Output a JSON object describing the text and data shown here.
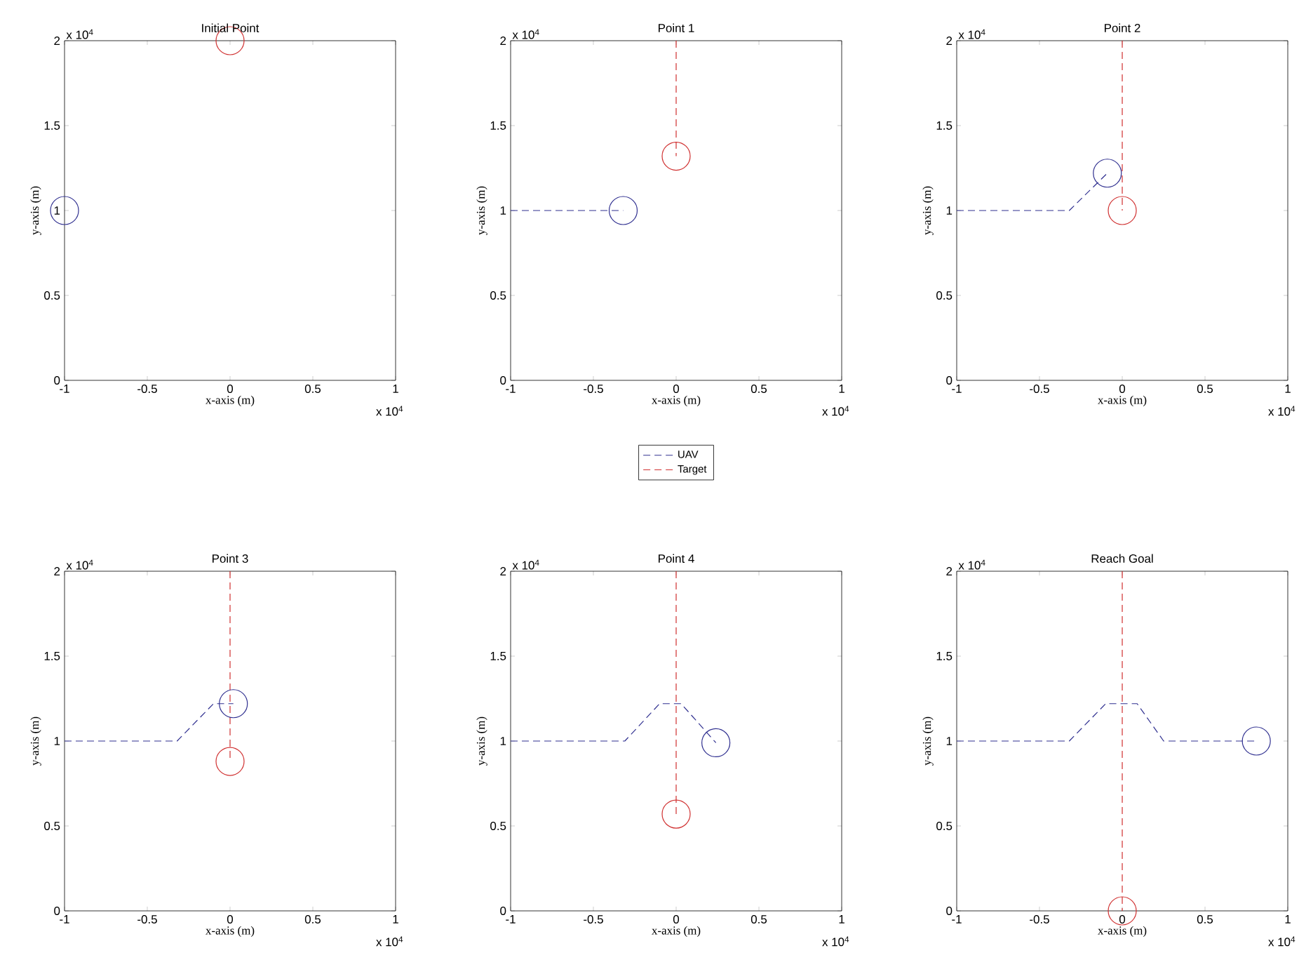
{
  "chart_data": [
    {
      "type": "line",
      "title": "Initial Point",
      "xlabel": "x-axis (m)",
      "ylabel": "y-axis (m)",
      "annotations": [
        "x 10$^{4}$",
        "x 10$^{4}$"
      ],
      "xlim": [
        -1,
        1
      ],
      "ylim": [
        0,
        2
      ],
      "xticks": [
        -1,
        -0.5,
        0,
        0.5,
        1
      ],
      "yticks": [
        0,
        0.5,
        1,
        1.5,
        2
      ],
      "series": [
        {
          "type": "scatter",
          "color": "#303090",
          "marker": "circle",
          "x": [
            -1
          ],
          "values": [
            1
          ]
        },
        {
          "type": "scatter",
          "color": "#d03030",
          "marker": "circle",
          "x": [
            0
          ],
          "values": [
            2
          ]
        }
      ]
    },
    {
      "type": "line",
      "title": "Point 1",
      "xlabel": "x-axis (m)",
      "ylabel": "y-axis (m)",
      "annotations": [
        "x 10$^{4}$",
        "x 10$^{4}$"
      ],
      "xlim": [
        -1,
        1
      ],
      "ylim": [
        0,
        2
      ],
      "legend": "bottom",
      "xticks": [
        -1,
        -0.5,
        0,
        0.5,
        1
      ],
      "yticks": [
        0,
        0.5,
        1,
        1.5,
        2
      ],
      "series": [
        {
          "name": "UAV",
          "color": "#303090",
          "line_style": "dashed",
          "x": [
            -1,
            -0.32
          ],
          "values": [
            1,
            1
          ]
        },
        {
          "name": "Target",
          "color": "#d03030",
          "line_style": "dashed",
          "x": [
            0,
            0
          ],
          "values": [
            2,
            1.32
          ]
        },
        {
          "type": "scatter",
          "color": "#303090",
          "marker": "circle",
          "x": [
            -0.32
          ],
          "values": [
            1
          ]
        },
        {
          "type": "scatter",
          "color": "#d03030",
          "marker": "circle",
          "x": [
            0
          ],
          "values": [
            1.32
          ]
        }
      ]
    },
    {
      "type": "line",
      "title": "Point 2",
      "xlabel": "x-axis (m)",
      "ylabel": "y-axis (m)",
      "annotations": [
        "x 10$^{4}$",
        "x 10$^{4}$"
      ],
      "xlim": [
        -1,
        1
      ],
      "ylim": [
        0,
        2
      ],
      "xticks": [
        -1,
        -0.5,
        0,
        0.5,
        1
      ],
      "yticks": [
        0,
        0.5,
        1,
        1.5,
        2
      ],
      "series": [
        {
          "color": "#303090",
          "line_style": "dashed",
          "x": [
            -1,
            -0.32,
            -0.09
          ],
          "values": [
            1,
            1,
            1.22
          ]
        },
        {
          "color": "#d03030",
          "line_style": "dashed",
          "x": [
            0,
            0
          ],
          "values": [
            2,
            1
          ]
        },
        {
          "type": "scatter",
          "color": "#303090",
          "marker": "circle",
          "x": [
            -0.09
          ],
          "values": [
            1.22
          ]
        },
        {
          "type": "scatter",
          "color": "#d03030",
          "marker": "circle",
          "x": [
            0
          ],
          "values": [
            1
          ]
        }
      ]
    },
    {
      "type": "line",
      "title": "Point 3",
      "xlabel": "x-axis (m)",
      "ylabel": "y-axis (m)",
      "annotations": [
        "x 10$^{4}$",
        "x 10$^{4}$"
      ],
      "xlim": [
        -1,
        1
      ],
      "ylim": [
        0,
        2
      ],
      "xticks": [
        -1,
        -0.5,
        0,
        0.5,
        1
      ],
      "yticks": [
        0,
        0.5,
        1,
        1.5,
        2
      ],
      "series": [
        {
          "color": "#303090",
          "line_style": "dashed",
          "x": [
            -1,
            -0.32,
            -0.1,
            0.02
          ],
          "values": [
            1,
            1,
            1.22,
            1.22
          ]
        },
        {
          "color": "#d03030",
          "line_style": "dashed",
          "x": [
            0,
            0
          ],
          "values": [
            2,
            0.88
          ]
        },
        {
          "type": "scatter",
          "color": "#303090",
          "marker": "circle",
          "x": [
            0.02
          ],
          "values": [
            1.22
          ]
        },
        {
          "type": "scatter",
          "color": "#d03030",
          "marker": "circle",
          "x": [
            0
          ],
          "values": [
            0.88
          ]
        }
      ]
    },
    {
      "type": "line",
      "title": "Point 4",
      "xlabel": "x-axis (m)",
      "ylabel": "y-axis (m)",
      "annotations": [
        "x 10$^{4}$",
        "x 10$^{4}$"
      ],
      "xlim": [
        -1,
        1
      ],
      "ylim": [
        0,
        2
      ],
      "xticks": [
        -1,
        -0.5,
        0,
        0.5,
        1
      ],
      "yticks": [
        0,
        0.5,
        1,
        1.5,
        2
      ],
      "series": [
        {
          "color": "#303090",
          "line_style": "dashed",
          "x": [
            -1,
            -0.31,
            -0.1,
            0.03,
            0.24
          ],
          "values": [
            1,
            1,
            1.22,
            1.22,
            0.99
          ]
        },
        {
          "color": "#d03030",
          "line_style": "dashed",
          "x": [
            0,
            0
          ],
          "values": [
            2,
            0.57
          ]
        },
        {
          "type": "scatter",
          "color": "#303090",
          "marker": "circle",
          "x": [
            0.24
          ],
          "values": [
            0.99
          ]
        },
        {
          "type": "scatter",
          "color": "#d03030",
          "marker": "circle",
          "x": [
            0
          ],
          "values": [
            0.57
          ]
        }
      ]
    },
    {
      "type": "line",
      "title": "Reach Goal",
      "xlabel": "x-axis (m)",
      "ylabel": "y-axis (m)",
      "annotations": [
        "x 10$^{4}$",
        "x 10$^{4}$"
      ],
      "xlim": [
        -1,
        1
      ],
      "ylim": [
        0,
        2
      ],
      "xticks": [
        -1,
        -0.5,
        0,
        0.5,
        1
      ],
      "yticks": [
        0,
        0.5,
        1,
        1.5,
        2
      ],
      "series": [
        {
          "color": "#303090",
          "line_style": "dashed",
          "x": [
            -1,
            -0.32,
            -0.1,
            0.09,
            0.25,
            0.81
          ],
          "values": [
            1,
            1,
            1.22,
            1.22,
            1,
            1
          ]
        },
        {
          "color": "#d03030",
          "line_style": "dashed",
          "x": [
            0,
            0
          ],
          "values": [
            2,
            0
          ]
        },
        {
          "type": "scatter",
          "color": "#303090",
          "marker": "circle",
          "x": [
            0.81
          ],
          "values": [
            1
          ]
        },
        {
          "type": "scatter",
          "color": "#d03030",
          "marker": "circle",
          "x": [
            0
          ],
          "values": [
            0
          ]
        }
      ]
    }
  ]
}
